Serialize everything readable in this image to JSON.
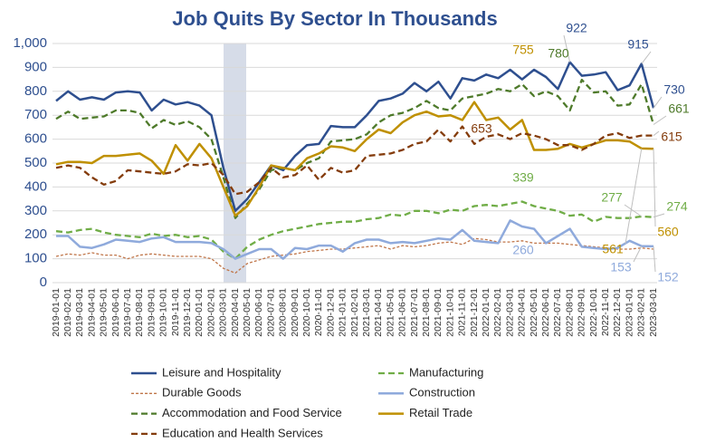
{
  "chart_data": {
    "type": "line",
    "title": "Job Quits By Sector In Thousands",
    "categories": [
      "2019-01-01",
      "2019-02-01",
      "2019-03-01",
      "2019-04-01",
      "2019-05-01",
      "2019-06-01",
      "2019-07-01",
      "2019-08-01",
      "2019-09-01",
      "2019-10-01",
      "2019-11-01",
      "2019-12-01",
      "2020-01-01",
      "2020-02-01",
      "2020-03-01",
      "2020-04-01",
      "2020-05-01",
      "2020-06-01",
      "2020-07-01",
      "2020-08-01",
      "2020-09-01",
      "2020-10-01",
      "2020-11-01",
      "2020-12-01",
      "2021-01-01",
      "2021-02-01",
      "2021-03-01",
      "2021-04-01",
      "2021-05-01",
      "2021-06-01",
      "2021-07-01",
      "2021-08-01",
      "2021-09-01",
      "2021-10-01",
      "2021-11-01",
      "2021-12-01",
      "2022-01-01",
      "2022-02-01",
      "2022-03-01",
      "2022-04-01",
      "2022-05-01",
      "2022-06-01",
      "2022-07-01",
      "2022-08-01",
      "2022-09-01",
      "2022-10-01",
      "2022-11-01",
      "2022-12-01",
      "2023-01-01",
      "2023-02-01",
      "2023-03-01"
    ],
    "series": [
      {
        "name": "Leisure and Hospitality",
        "color": "#2e4f8f",
        "style": "solid",
        "values": [
          760,
          800,
          765,
          775,
          765,
          795,
          800,
          795,
          720,
          765,
          745,
          755,
          740,
          700,
          480,
          300,
          350,
          420,
          490,
          470,
          530,
          575,
          580,
          655,
          650,
          650,
          700,
          760,
          770,
          790,
          835,
          800,
          840,
          770,
          855,
          845,
          870,
          855,
          890,
          850,
          890,
          860,
          810,
          922,
          865,
          870,
          880,
          805,
          825,
          915,
          730
        ]
      },
      {
        "name": "Manufacturing",
        "color": "#70ad47",
        "style": "dashed",
        "values": [
          215,
          210,
          220,
          225,
          210,
          200,
          195,
          190,
          205,
          195,
          200,
          190,
          195,
          180,
          130,
          100,
          150,
          180,
          200,
          215,
          225,
          235,
          245,
          250,
          255,
          255,
          265,
          270,
          285,
          280,
          300,
          300,
          290,
          305,
          300,
          320,
          325,
          320,
          330,
          339,
          320,
          310,
          300,
          280,
          285,
          255,
          275,
          270,
          270,
          277,
          274
        ]
      },
      {
        "name": "Durable Goods",
        "color": "#c0764a",
        "style": "dotted",
        "values": [
          110,
          120,
          115,
          125,
          115,
          115,
          100,
          115,
          120,
          115,
          110,
          110,
          110,
          100,
          60,
          40,
          80,
          95,
          110,
          115,
          120,
          130,
          135,
          140,
          140,
          145,
          150,
          155,
          140,
          155,
          150,
          155,
          165,
          170,
          160,
          185,
          180,
          170,
          170,
          175,
          165,
          165,
          165,
          160,
          155,
          150,
          145,
          140,
          140,
          145,
          140
        ]
      },
      {
        "name": "Construction",
        "color": "#8faadc",
        "style": "solid",
        "values": [
          195,
          195,
          150,
          145,
          160,
          180,
          175,
          170,
          185,
          190,
          170,
          170,
          170,
          165,
          140,
          100,
          120,
          140,
          140,
          100,
          145,
          140,
          155,
          155,
          130,
          165,
          180,
          180,
          165,
          170,
          165,
          175,
          185,
          180,
          220,
          175,
          170,
          165,
          260,
          235,
          225,
          165,
          195,
          225,
          150,
          145,
          140,
          145,
          175,
          153,
          152
        ]
      },
      {
        "name": "Accommodation and Food Service",
        "color": "#4e7a2a",
        "style": "dashed",
        "values": [
          685,
          715,
          685,
          690,
          695,
          720,
          720,
          710,
          645,
          680,
          660,
          675,
          650,
          600,
          440,
          270,
          330,
          390,
          470,
          480,
          470,
          500,
          520,
          590,
          595,
          600,
          620,
          670,
          700,
          710,
          730,
          760,
          730,
          720,
          770,
          780,
          790,
          810,
          800,
          830,
          780,
          800,
          780,
          720,
          848,
          795,
          800,
          740,
          745,
          830,
          661
        ]
      },
      {
        "name": "Retail Trade",
        "color": "#bf9000",
        "style": "solid",
        "values": [
          495,
          505,
          505,
          500,
          530,
          530,
          535,
          540,
          510,
          455,
          575,
          510,
          580,
          520,
          400,
          280,
          320,
          400,
          490,
          480,
          470,
          520,
          540,
          570,
          565,
          550,
          600,
          640,
          625,
          670,
          700,
          715,
          695,
          700,
          680,
          755,
          680,
          690,
          640,
          680,
          555,
          555,
          560,
          580,
          565,
          580,
          595,
          595,
          590,
          561,
          560
        ]
      },
      {
        "name": "Education and Health Services",
        "color": "#843c0c",
        "style": "dashed",
        "values": [
          480,
          490,
          480,
          440,
          410,
          425,
          470,
          465,
          460,
          455,
          465,
          495,
          490,
          500,
          450,
          370,
          380,
          420,
          480,
          440,
          450,
          490,
          430,
          480,
          460,
          470,
          530,
          535,
          540,
          555,
          580,
          590,
          640,
          590,
          653,
          580,
          610,
          620,
          600,
          625,
          615,
          600,
          575,
          575,
          555,
          580,
          615,
          625,
          605,
          615,
          615
        ]
      }
    ],
    "ylim": [
      0,
      1000
    ],
    "yticks": [
      0,
      100,
      200,
      300,
      400,
      500,
      600,
      700,
      800,
      900,
      {
        "value": 1000,
        "label": "1,000"
      }
    ],
    "grid": true,
    "legend": "bottom"
  }
}
